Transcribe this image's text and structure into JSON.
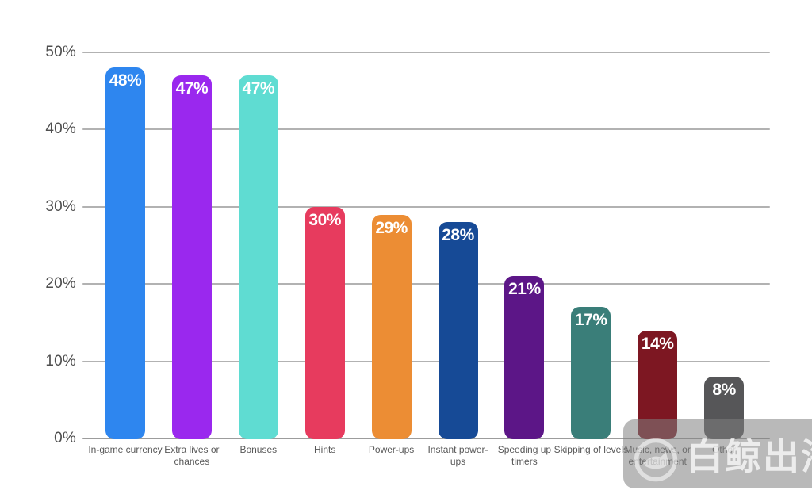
{
  "chart_data": {
    "type": "bar",
    "title": "",
    "xlabel": "",
    "ylabel": "",
    "categories": [
      "In-game currency",
      "Extra lives or chances",
      "Bonuses",
      "Hints",
      "Power-ups",
      "Instant power-ups",
      "Speeding up timers",
      "Skipping of levels",
      "Music, news, or entertainment",
      "Other"
    ],
    "values": [
      48,
      47,
      47,
      30,
      29,
      28,
      21,
      17,
      14,
      8
    ],
    "value_labels": [
      "48%",
      "47%",
      "47%",
      "30%",
      "29%",
      "28%",
      "21%",
      "17%",
      "14%",
      "8%"
    ],
    "bar_colors": [
      "#2e86ef",
      "#9a28ee",
      "#5fdcd2",
      "#e73b5e",
      "#ec8d34",
      "#164a96",
      "#5c1687",
      "#3a7e79",
      "#7d1722",
      "#565658"
    ],
    "ylim": [
      0,
      50
    ],
    "yticks": [
      50,
      40,
      30,
      20,
      10,
      0
    ],
    "ytick_labels": [
      "50%",
      "40%",
      "30%",
      "20%",
      "10%",
      "0%"
    ],
    "grid": true,
    "legend": false,
    "gridline_color": "#b2b2b2",
    "tick_label_color": "#4f4f4f",
    "category_label_color": "#585858",
    "value_label_color": "#ffffff"
  },
  "watermark": {
    "text": "白鲸出海",
    "logo": "whale-in-circle"
  }
}
